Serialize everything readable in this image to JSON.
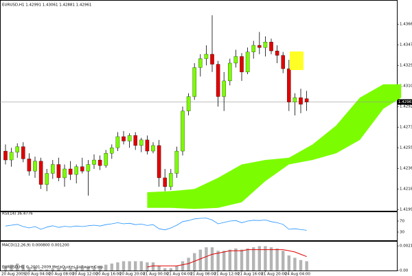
{
  "chart_data": [
    {
      "type": "candlestick",
      "title": "EURUSD,H1 1.42991 1.43061 1.42881 1.42961",
      "categories": [
        "20 Aug 2009",
        null,
        null,
        null,
        "20 Aug 04:00",
        null,
        null,
        null,
        "20 Aug 08:00",
        null,
        null,
        null,
        "20 Aug 12:00",
        null,
        null,
        null,
        "20 Aug 16:00",
        null,
        null,
        null,
        "20 Aug 20:00",
        null,
        null,
        null,
        "21 Aug 00:00",
        null,
        null,
        null,
        "21 Aug 04:00",
        null,
        null,
        null,
        "21 Aug 08:00",
        null,
        null,
        null,
        "21 Aug 12:00",
        null,
        null,
        null,
        "21 Aug 16:00",
        null,
        null,
        null,
        "21 Aug 20:00",
        null,
        null,
        null,
        "24 Aug 04:00",
        null,
        null,
        null
      ],
      "open": [
        1.4252,
        1.4244,
        1.4251,
        1.4256,
        1.4245,
        1.4234,
        1.4243,
        1.4222,
        1.4232,
        1.424,
        1.4228,
        1.4236,
        1.4231,
        1.4238,
        1.4234,
        1.424,
        1.4244,
        1.4239,
        1.425,
        1.4255,
        1.4265,
        1.4261,
        1.4266,
        1.4257,
        1.4262,
        1.4252,
        1.4257,
        1.4228,
        1.422,
        1.4232,
        1.4252,
        1.4288,
        1.4301,
        1.4327,
        1.4335,
        1.4339,
        1.433,
        1.4301,
        1.4315,
        1.4331,
        1.4337,
        1.4323,
        1.4341,
        1.4347,
        1.4345,
        1.435,
        1.4342,
        1.4338,
        1.4326,
        1.4296,
        1.43,
        1.42991
      ],
      "high": [
        1.4258,
        1.4255,
        1.4259,
        1.426,
        1.425,
        1.4247,
        1.4246,
        1.4236,
        1.4244,
        1.4246,
        1.424,
        1.4243,
        1.424,
        1.4246,
        1.4244,
        1.4249,
        1.4248,
        1.4253,
        1.4258,
        1.4269,
        1.427,
        1.4268,
        1.4269,
        1.4264,
        1.4266,
        1.426,
        1.4262,
        1.4236,
        1.4236,
        1.4256,
        1.4292,
        1.4304,
        1.4331,
        1.4339,
        1.4347,
        1.4374,
        1.4333,
        1.4323,
        1.4335,
        1.4343,
        1.434,
        1.4345,
        1.4351,
        1.4359,
        1.4355,
        1.4353,
        1.4347,
        1.4341,
        1.4334,
        1.4304,
        1.4308,
        1.43061
      ],
      "low": [
        1.424,
        1.4238,
        1.4246,
        1.4242,
        1.423,
        1.4228,
        1.4218,
        1.4216,
        1.4227,
        1.4225,
        1.422,
        1.4226,
        1.4223,
        1.4232,
        1.4212,
        1.4236,
        1.4235,
        1.4237,
        1.4245,
        1.4252,
        1.4258,
        1.4255,
        1.4253,
        1.4251,
        1.4249,
        1.425,
        1.422,
        1.4216,
        1.4217,
        1.4228,
        1.4248,
        1.4284,
        1.4298,
        1.4319,
        1.4329,
        1.4323,
        1.4292,
        1.4288,
        1.4311,
        1.4327,
        1.4315,
        1.4321,
        1.4335,
        1.4339,
        1.4337,
        1.4339,
        1.4331,
        1.4322,
        1.4288,
        1.4284,
        1.4286,
        1.42881
      ],
      "close": [
        1.4244,
        1.4251,
        1.4256,
        1.4245,
        1.4234,
        1.4243,
        1.4222,
        1.4232,
        1.424,
        1.4228,
        1.4236,
        1.4231,
        1.4238,
        1.4234,
        1.424,
        1.4244,
        1.4239,
        1.425,
        1.4255,
        1.4265,
        1.4261,
        1.4266,
        1.4257,
        1.4262,
        1.4252,
        1.4257,
        1.4228,
        1.422,
        1.4232,
        1.4252,
        1.4288,
        1.4301,
        1.4327,
        1.4335,
        1.4339,
        1.433,
        1.4301,
        1.4315,
        1.4331,
        1.4337,
        1.4323,
        1.4341,
        1.4347,
        1.4345,
        1.435,
        1.4342,
        1.4338,
        1.4326,
        1.4296,
        1.43,
        1.4294,
        1.42961
      ],
      "up_color": "#7cfc00",
      "down_color": "#e00000",
      "cloud": {
        "color": "#7cfc00",
        "x": [
          24,
          28,
          32,
          36,
          40,
          44,
          48,
          52,
          56,
          60,
          64,
          67
        ],
        "upper": [
          1.4215,
          1.4216,
          1.4218,
          1.4228,
          1.424,
          1.4244,
          1.4246,
          1.4258,
          1.4275,
          1.43,
          1.4312,
          1.4312
        ],
        "lower": [
          1.4201,
          1.4201,
          1.42,
          1.4201,
          1.4206,
          1.4225,
          1.424,
          1.4244,
          1.425,
          1.4262,
          1.429,
          1.43
        ]
      },
      "ylim": [
        1.4199,
        1.4384
      ],
      "yticks": [
        {
          "value": 1.4366,
          "label": "1.43660"
        },
        {
          "value": 1.43475,
          "label": "1.43475"
        },
        {
          "value": 1.4329,
          "label": "1.43290"
        },
        {
          "value": 1.43105,
          "label": "1.43105"
        },
        {
          "value": 1.4292,
          "label": "1.42920"
        },
        {
          "value": 1.42735,
          "label": "1.42735"
        },
        {
          "value": 1.4255,
          "label": "1.42550"
        },
        {
          "value": 1.42365,
          "label": "1.42365"
        },
        {
          "value": 1.4218,
          "label": "1.42180"
        },
        {
          "value": 1.41995,
          "label": "1.41995"
        }
      ]
    },
    {
      "type": "line",
      "title": "RSI(14) 36.4776",
      "color": "#1e90ff",
      "values": [
        52,
        55,
        58,
        50,
        45,
        50,
        40,
        48,
        53,
        47,
        51,
        49,
        52,
        50,
        53,
        55,
        52,
        57,
        60,
        64,
        60,
        62,
        57,
        59,
        54,
        57,
        42,
        38,
        45,
        55,
        68,
        72,
        78,
        80,
        81,
        74,
        60,
        65,
        70,
        72,
        64,
        70,
        73,
        72,
        74,
        68,
        64,
        58,
        40,
        42,
        39,
        36.4776
      ],
      "ylim": [
        0,
        100
      ],
      "yticks": [
        70,
        30
      ]
    },
    {
      "type": "bar",
      "title": "MACD(12,26,9) 0.000800 0.001200",
      "footer": "EURUSD,H1 © 2001-2009 MetaQuotes Software Corp.",
      "color": "#b4b4b4",
      "signal_color": "#e00000",
      "values": [
        0.0004,
        0.0005,
        0.0006,
        0.0005,
        0.0003,
        0.0003,
        0.0001,
        0.0001,
        0.0002,
        0.0002,
        0.0002,
        0.0002,
        0.0003,
        0.0003,
        0.0003,
        0.0004,
        0.0004,
        0.0005,
        0.0006,
        0.0007,
        0.0008,
        0.0008,
        0.0008,
        0.0008,
        0.0007,
        0.0007,
        0.0004,
        0.0002,
        0.0002,
        0.0004,
        0.0008,
        0.0011,
        0.0015,
        0.0018,
        0.002,
        0.002,
        0.0017,
        0.0017,
        0.0018,
        0.0019,
        0.0018,
        0.0019,
        0.002,
        0.0021,
        0.0021,
        0.002,
        0.0019,
        0.0017,
        0.0013,
        0.0011,
        0.0009,
        0.0008
      ],
      "signal": [
        null,
        null,
        null,
        null,
        null,
        null,
        null,
        null,
        null,
        null,
        null,
        null,
        null,
        null,
        null,
        null,
        null,
        null,
        null,
        null,
        null,
        null,
        null,
        null,
        0.0003,
        0.0004,
        0.0004,
        0.0004,
        0.0004,
        0.0004,
        0.0005,
        0.0006,
        0.0008,
        0.001,
        0.0012,
        0.0014,
        0.0015,
        0.0016,
        0.0017,
        0.0017,
        0.0017,
        0.0018,
        0.0018,
        0.0018,
        0.0018,
        0.0018,
        0.0018,
        0.0018,
        0.0017,
        0.0016,
        0.0014,
        0.0012
      ],
      "ylim": [
        0,
        0.00225
      ],
      "yticks": [
        {
          "value": 0.002124,
          "label": "0.002124"
        },
        {
          "value": 0,
          "label": "0.00"
        }
      ]
    }
  ]
}
